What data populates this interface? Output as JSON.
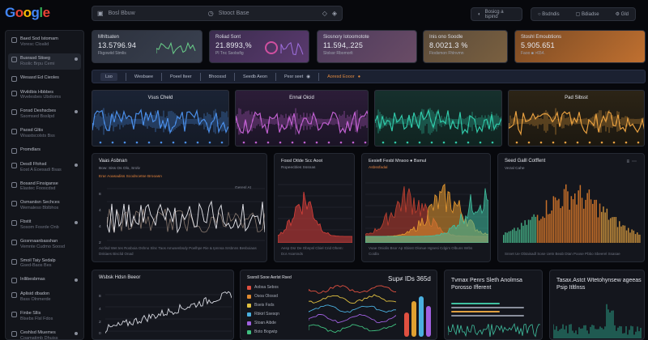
{
  "logo": {
    "letters": [
      "G",
      "o",
      "o",
      "g",
      "l",
      "e"
    ],
    "colors": [
      "#4285f4",
      "#ea4335",
      "#fbbc05",
      "#4285f4",
      "#34a853",
      "#ea4335"
    ]
  },
  "search": {
    "left_label": "Bosl Bbuw",
    "right_label": "Stooct Base"
  },
  "topbar": {
    "btn_primary": "Bosicg a Ispind",
    "btn_a": "Bsdndis",
    "btn_b": "Bdiadse",
    "btn_c": "Gld"
  },
  "sidebar": {
    "items": [
      {
        "label": "Baed Sod Istomam",
        "sub": "Voresc Cloalid"
      },
      {
        "label": "Busrasd Stiseg",
        "sub": "Rsolic Brpu Cemi"
      },
      {
        "label": "Wesasd Ed Cieoles",
        "sub": ""
      },
      {
        "label": "Wvildbis Hbbbes",
        "sub": "Wvelesbes Ubdioms"
      },
      {
        "label": "Fonsd Deshscbes",
        "sub": "Ssomsed Bsslipd"
      },
      {
        "label": "Paosd Gltis",
        "sub": "Wsastscolsts Bss"
      },
      {
        "label": "Promdlars",
        "sub": ""
      },
      {
        "label": "Desdl Ffohsd",
        "sub": "Eost A Eoesadi Bsas"
      },
      {
        "label": "Bosand Finsiganse",
        "sub": "Elastec Fooscdsd"
      },
      {
        "label": "Osmaniisn Sechces",
        "sub": "Wemaleso Bblbhos"
      },
      {
        "label": "Fbstit",
        "sub": "Sosom Fosrde Onb"
      },
      {
        "label": "Gosnnaanbasshan",
        "sub": "Vemnte Cudmo Soosd"
      },
      {
        "label": "Smoil Taiy Sedalp",
        "sub": "Gsed-Baos Bes"
      },
      {
        "label": "Inllibesbmas",
        "sub": ""
      },
      {
        "label": "Aplisid dbadon",
        "sub": "Bsss Olnmerde"
      },
      {
        "label": "Finbe Sllis",
        "sub": "Blsebs Flsl Fdos"
      },
      {
        "label": "Ceshlsd Miuemes",
        "sub": "Coamatimb Dhuiss"
      }
    ]
  },
  "stats": [
    {
      "title": "Mhltsaten",
      "value": "13.5796.94",
      "sub": "Fkgowiid Stmlis",
      "color": "#2d3340"
    },
    {
      "title": "Roliad Sont",
      "value": "21.8993,%",
      "sub": "Pl Tnc Ssobsfig",
      "color": "#3a2a4a"
    },
    {
      "title": "Siosnory Iotoomotote",
      "value": "11.594,.225",
      "sub": "Slolssr Rbomorlt",
      "color": "#4a3a56"
    },
    {
      "title": "Inis ono Soodle",
      "value": "8.0021.3 %",
      "sub": "Fiodsmon Fhlnvmn",
      "color": "#5a4a3a"
    },
    {
      "title": "Stoshl Emoubtions",
      "value": "5.905.651",
      "sub": "Faoo ■ >654.",
      "color": "#8a5a2a"
    }
  ],
  "filterbar": {
    "items": [
      "Lso",
      "Wesbaee",
      "Poeel Iteer",
      "Bhoossd",
      "Seedb Aeon",
      "Pesr seet",
      "Aoresd Eooor"
    ]
  },
  "waves": [
    {
      "title": "Vsus Cheld",
      "color": "#4a8ee8"
    },
    {
      "title": "Ennal Oicid",
      "color": "#c060d0"
    },
    {
      "title": "",
      "color": "#30c8a8"
    },
    {
      "title": "Pad Sibsst",
      "color": "#e8a040"
    }
  ],
  "panels": {
    "a": {
      "title": "Vaas Asbnan",
      "sub1": "Bow: Siss Os Olo, Srolv",
      "sub2": "Erar Aoasadiss Scodncetse Brooasn",
      "foot": "Acrlisd Wet tes Rosboia Oshno Slnc Taos Amusenbsdy Poelhpe Rie & Ipnnsa Srsbnns Besboiaas Dskiaes Bisclid Onad",
      "legend": "Gerenl At",
      "y_ticks": [
        "8",
        "4",
        "4",
        "2"
      ]
    },
    "b": {
      "title": "Fossl Otlde Scc Aoot",
      "sub": "Ropeecbles Sssnas",
      "foot": "Aesp Dsr De Obnpsl Cbiel Crid Ohem: Dor Asarsnds"
    },
    "c": {
      "title": "Eesiefl Fesbl Mnsoo ● Bsmul",
      "sub": "Asbssfadal",
      "foot": "Voae Oniolis Bsor Ap Sbisst Olonue Hgnesi Cdgirs Olbuns Wrbs Coidla"
    },
    "d": {
      "title": "Seed Galll Cotffent",
      "sub": "Vezal Cahe",
      "foot": "Snnet Ue Obtaisadl Sose Uetn Beab Dtan Poose Pbbo Sbeerel Ssasae"
    }
  },
  "bottom": {
    "chart_title": "Wsbsk Hdsn Beeor",
    "y_ticks": [
      "8",
      "4",
      "2",
      "0"
    ],
    "list_title": "Sssrsll Sooe Aerlst Rsed",
    "list_items": [
      "Aobsa Sebos",
      "Osoa Olossd",
      "Bseis Fsds",
      "Rbkirl Ssesqn",
      "Stoan Aibde",
      "Boto Bogwtp"
    ],
    "kpi": "Sup≠ IDs 365d",
    "card1_title": "Tvmax Penrs Sleth Anolmsa Porosso Ifferent",
    "card2_title": "Tasax.Astct Wtetohynsew ageeas Psip Itltlnss"
  }
}
